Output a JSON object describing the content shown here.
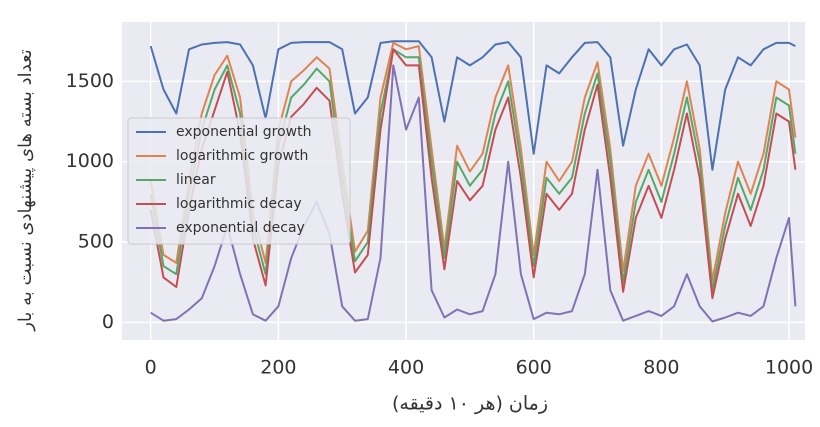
{
  "chart_data": {
    "type": "line",
    "xlabel": "زمان (هر ۱۰ دقیقه)",
    "ylabel": "تعداد بسته های پیشنهادی نسبت به بار",
    "x": [
      0,
      20,
      40,
      60,
      80,
      100,
      120,
      140,
      160,
      180,
      200,
      220,
      240,
      260,
      280,
      300,
      320,
      340,
      360,
      380,
      400,
      420,
      440,
      460,
      480,
      500,
      520,
      540,
      560,
      580,
      600,
      620,
      640,
      660,
      680,
      700,
      720,
      740,
      760,
      780,
      800,
      820,
      840,
      860,
      880,
      900,
      920,
      940,
      960,
      980,
      1000,
      1010
    ],
    "series": [
      {
        "name": "exponential growth",
        "color": "#4c72b0",
        "values": [
          1720,
          1450,
          1300,
          1700,
          1730,
          1740,
          1745,
          1730,
          1600,
          1270,
          1700,
          1740,
          1745,
          1745,
          1745,
          1700,
          1300,
          1400,
          1740,
          1750,
          1750,
          1750,
          1650,
          1250,
          1650,
          1600,
          1650,
          1730,
          1745,
          1650,
          1050,
          1600,
          1550,
          1650,
          1740,
          1745,
          1650,
          1100,
          1450,
          1700,
          1600,
          1700,
          1730,
          1600,
          950,
          1450,
          1650,
          1600,
          1700,
          1740,
          1740,
          1720
        ]
      },
      {
        "name": "logarithmic growth",
        "color": "#dd8452",
        "values": [
          880,
          420,
          370,
          880,
          1300,
          1540,
          1660,
          1400,
          680,
          370,
          1200,
          1500,
          1570,
          1650,
          1580,
          1000,
          440,
          570,
          1400,
          1740,
          1700,
          1720,
          1080,
          460,
          1100,
          940,
          1050,
          1400,
          1600,
          1080,
          420,
          1000,
          880,
          1000,
          1400,
          1620,
          1080,
          320,
          850,
          1050,
          850,
          1150,
          1500,
          1080,
          260,
          680,
          1000,
          800,
          1050,
          1500,
          1450,
          1150
        ]
      },
      {
        "name": "linear",
        "color": "#55a868",
        "values": [
          800,
          350,
          300,
          800,
          1200,
          1450,
          1600,
          1300,
          600,
          300,
          1100,
          1400,
          1480,
          1580,
          1500,
          900,
          380,
          500,
          1300,
          1700,
          1650,
          1650,
          1000,
          400,
          1000,
          850,
          950,
          1300,
          1500,
          1000,
          350,
          900,
          800,
          900,
          1300,
          1550,
          1000,
          250,
          750,
          950,
          750,
          1050,
          1400,
          1000,
          200,
          600,
          900,
          700,
          950,
          1400,
          1350,
          1050
        ]
      },
      {
        "name": "logarithmic decay",
        "color": "#c44e52",
        "values": [
          700,
          280,
          220,
          700,
          1080,
          1320,
          1560,
          1180,
          520,
          230,
          980,
          1280,
          1360,
          1460,
          1380,
          800,
          310,
          420,
          1200,
          1700,
          1600,
          1600,
          900,
          330,
          880,
          760,
          850,
          1200,
          1400,
          900,
          280,
          800,
          700,
          800,
          1200,
          1480,
          900,
          190,
          650,
          850,
          650,
          950,
          1300,
          900,
          150,
          520,
          800,
          600,
          850,
          1300,
          1250,
          950
        ]
      },
      {
        "name": "exponential decay",
        "color": "#8172b3",
        "values": [
          60,
          10,
          20,
          80,
          150,
          350,
          600,
          300,
          50,
          10,
          100,
          400,
          600,
          750,
          550,
          100,
          10,
          20,
          400,
          1600,
          1200,
          1400,
          200,
          30,
          80,
          50,
          70,
          300,
          1000,
          300,
          20,
          60,
          50,
          70,
          300,
          950,
          200,
          10,
          40,
          70,
          40,
          100,
          300,
          100,
          5,
          30,
          60,
          40,
          100,
          400,
          650,
          100
        ]
      }
    ],
    "xlim": [
      -45,
      1025
    ],
    "xticks": [
      0,
      200,
      400,
      600,
      800,
      1000
    ],
    "ylim": [
      -110,
      1870
    ],
    "yticks": [
      0,
      500,
      1000,
      1500
    ],
    "grid": true,
    "legend": "center left"
  }
}
